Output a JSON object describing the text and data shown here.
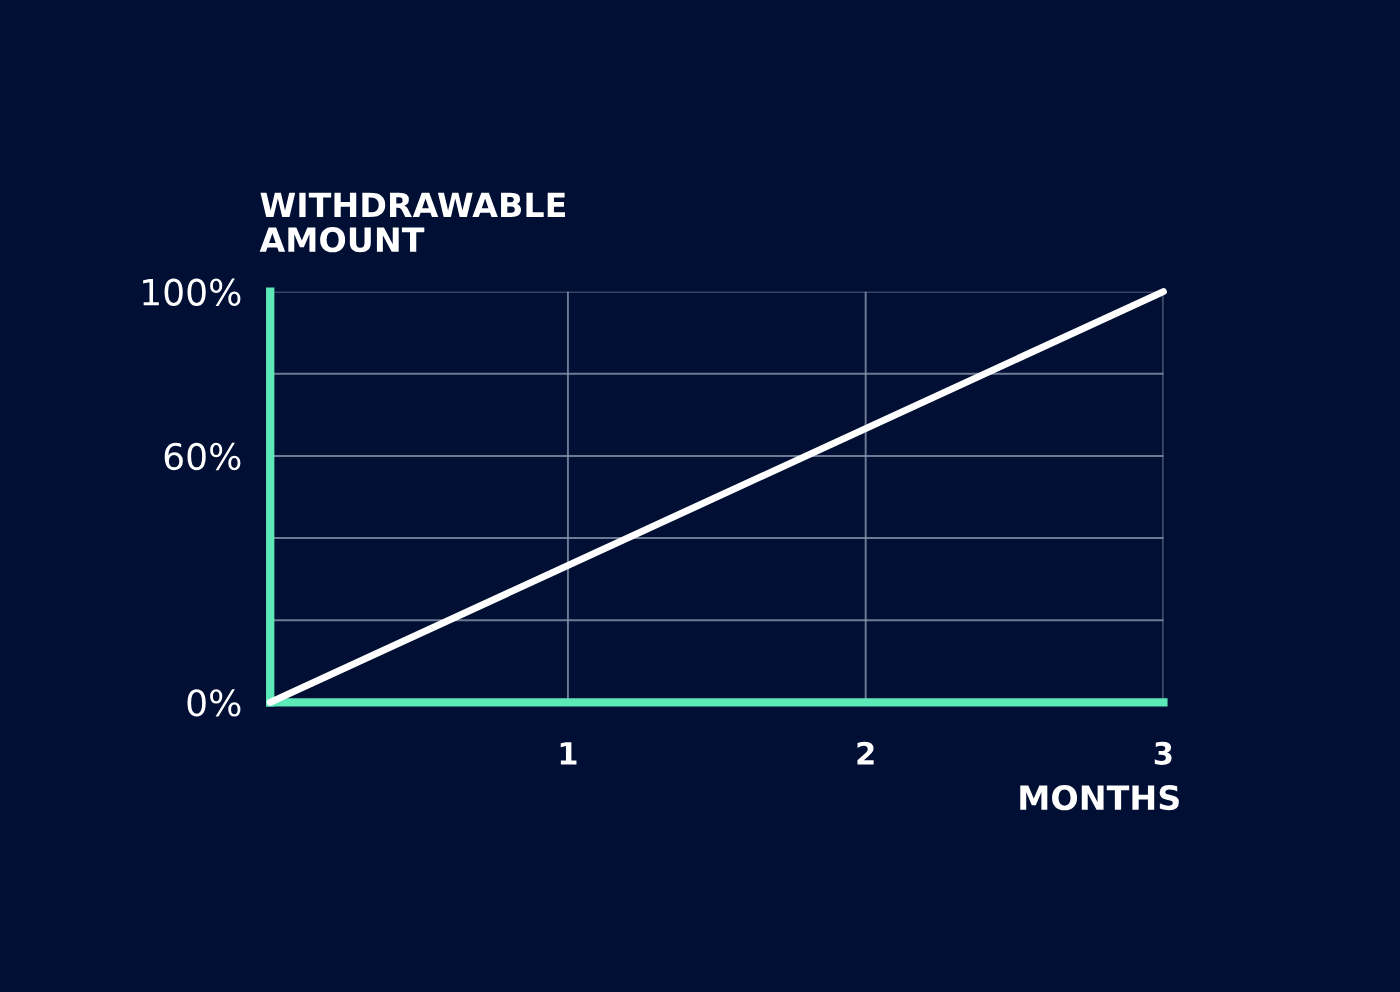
{
  "chart_data": {
    "type": "line",
    "xlabel": "MONTHS",
    "ylabel": "WITHDRAWABLE\nAMOUNT",
    "x": [
      0,
      3
    ],
    "series": [
      {
        "color": "#ffffff",
        "values": [
          0,
          100
        ]
      }
    ],
    "xlim": [
      0,
      3
    ],
    "ylim": [
      0,
      100
    ],
    "xticks": [
      1,
      2,
      3
    ],
    "yticks": [
      {
        "value": 0,
        "label": "0%"
      },
      {
        "value": 20,
        "label": null
      },
      {
        "value": 40,
        "label": null
      },
      {
        "value": 60,
        "label": "60%"
      },
      {
        "value": 80,
        "label": null
      },
      {
        "value": 100,
        "label": "100%"
      }
    ],
    "grid": true,
    "marker": "none",
    "line_style": "solid"
  }
}
